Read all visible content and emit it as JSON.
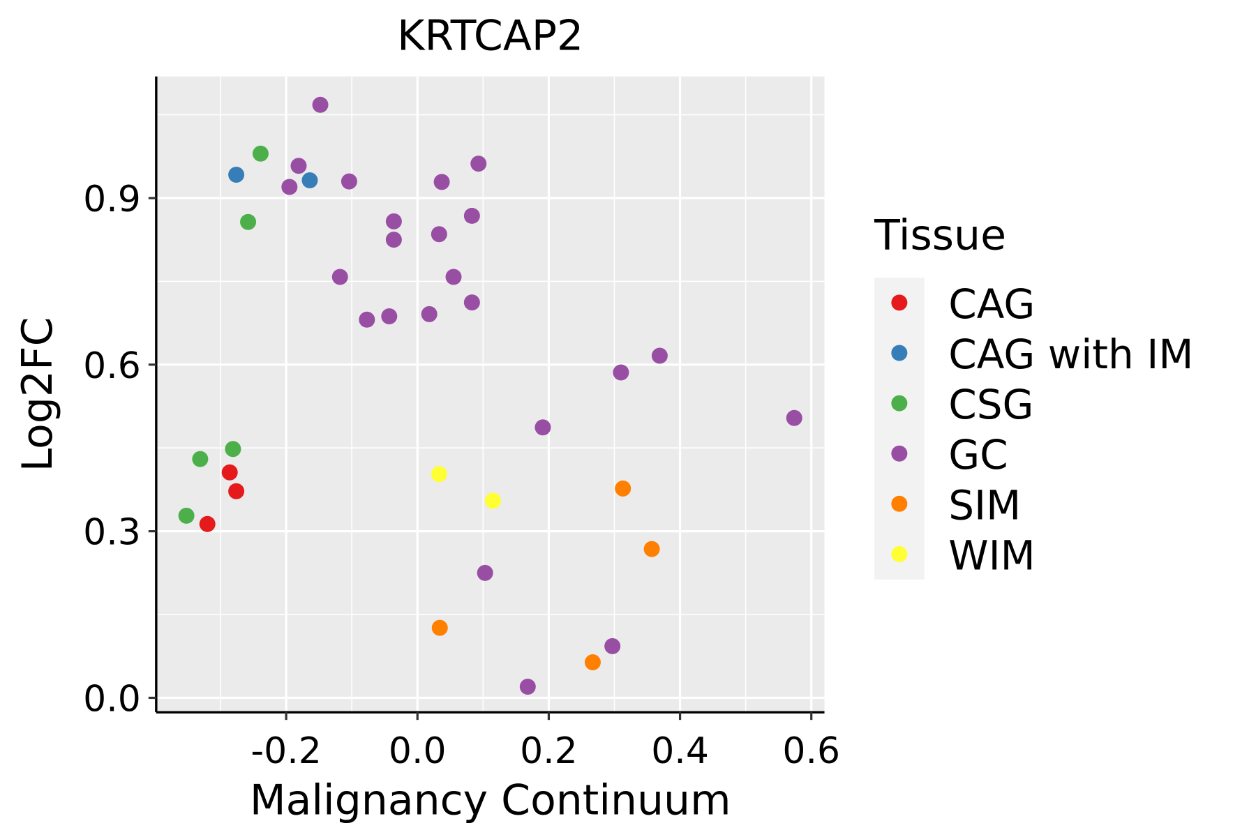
{
  "chart_data": {
    "type": "scatter",
    "title": "KRTCAP2",
    "xlabel": "Malignancy Continuum",
    "ylabel": "Log2FC",
    "xlim": [
      -0.398,
      0.62
    ],
    "ylim": [
      -0.026,
      1.119
    ],
    "xticks": [
      -0.2,
      0.0,
      0.2,
      0.4,
      0.6
    ],
    "xtick_labels": [
      "-0.2",
      "0.0",
      "0.2",
      "0.4",
      "0.6"
    ],
    "yticks": [
      0.0,
      0.3,
      0.6,
      0.9
    ],
    "ytick_labels": [
      "0.0",
      "0.3",
      "0.6",
      "0.9"
    ],
    "grid": true,
    "legend": {
      "title": "Tissue",
      "position": "right"
    },
    "series": [
      {
        "name": "CAG",
        "color": "#e41a1c",
        "points": [
          [
            -0.286,
            0.406
          ],
          [
            -0.276,
            0.372
          ],
          [
            -0.32,
            0.313
          ]
        ]
      },
      {
        "name": "CAG with IM",
        "color": "#377eb8",
        "points": [
          [
            -0.276,
            0.942
          ],
          [
            -0.164,
            0.932
          ]
        ]
      },
      {
        "name": "CSG",
        "color": "#4daf4a",
        "points": [
          [
            -0.239,
            0.98
          ],
          [
            -0.258,
            0.857
          ],
          [
            -0.281,
            0.448
          ],
          [
            -0.331,
            0.43
          ],
          [
            -0.352,
            0.328
          ]
        ]
      },
      {
        "name": "GC",
        "color": "#984ea3",
        "points": [
          [
            -0.148,
            1.068
          ],
          [
            -0.181,
            0.958
          ],
          [
            -0.195,
            0.92
          ],
          [
            -0.104,
            0.93
          ],
          [
            0.037,
            0.929
          ],
          [
            0.093,
            0.962
          ],
          [
            -0.036,
            0.858
          ],
          [
            -0.036,
            0.825
          ],
          [
            0.033,
            0.835
          ],
          [
            0.083,
            0.868
          ],
          [
            -0.118,
            0.758
          ],
          [
            0.055,
            0.758
          ],
          [
            0.083,
            0.712
          ],
          [
            0.018,
            0.691
          ],
          [
            -0.043,
            0.687
          ],
          [
            -0.077,
            0.681
          ],
          [
            0.369,
            0.616
          ],
          [
            0.31,
            0.586
          ],
          [
            0.574,
            0.504
          ],
          [
            0.191,
            0.487
          ],
          [
            0.103,
            0.225
          ],
          [
            0.297,
            0.093
          ],
          [
            0.168,
            0.02
          ]
        ]
      },
      {
        "name": "SIM",
        "color": "#ff7f00",
        "points": [
          [
            0.313,
            0.377
          ],
          [
            0.357,
            0.268
          ],
          [
            0.034,
            0.126
          ],
          [
            0.267,
            0.064
          ]
        ]
      },
      {
        "name": "WIM",
        "color": "#ffff33",
        "points": [
          [
            0.033,
            0.403
          ],
          [
            0.115,
            0.355
          ]
        ]
      }
    ],
    "panel_background": "#ebebeb",
    "legend_key_background": "#f2f2f2",
    "grid_color": "#ffffff"
  }
}
